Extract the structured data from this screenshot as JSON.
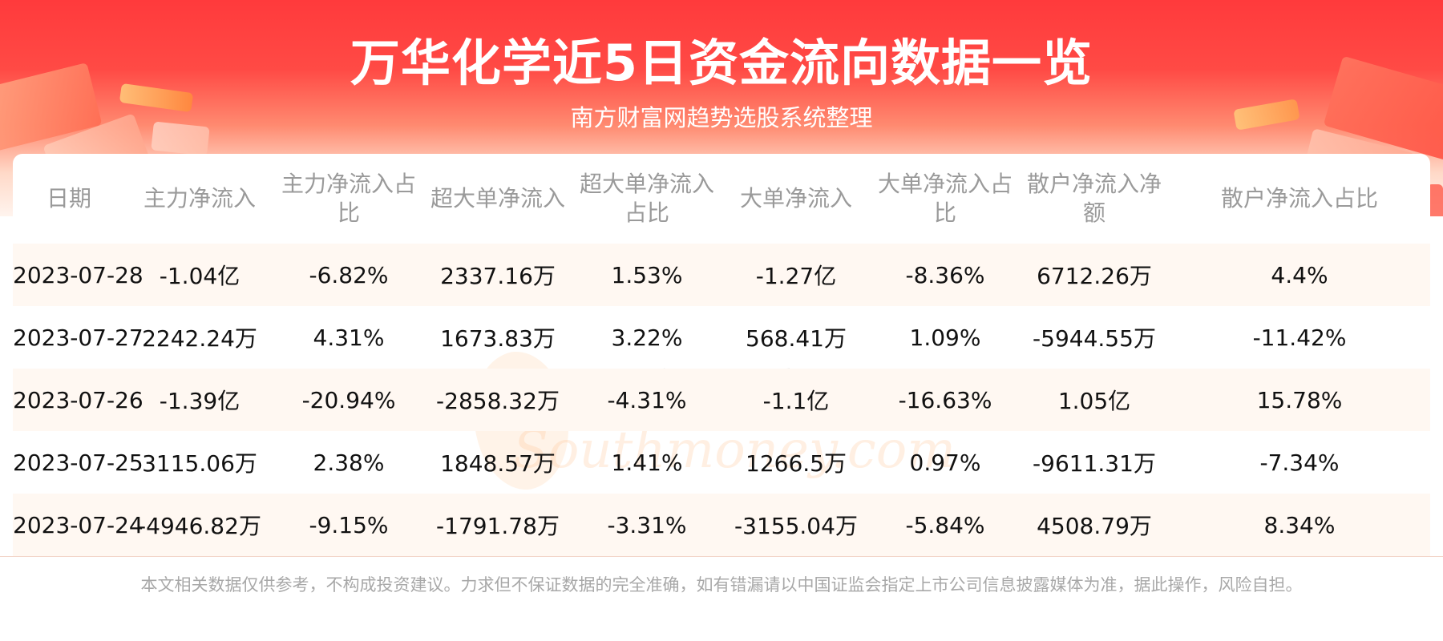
{
  "header": {
    "title": "万华化学近5日资金流向数据一览",
    "subtitle": "南方财富网趋势选股系统整理"
  },
  "watermark": {
    "cn": "南方财富网",
    "en": "Southmoney.com"
  },
  "table": {
    "columns": [
      "日期",
      "主力净流入",
      "主力净流入占比",
      "超大单净流入",
      "超大单净流入占比",
      "大单净流入",
      "大单净流入占比",
      "散户净流入净额",
      "散户净流入占比"
    ],
    "rows": [
      [
        "2023-07-28",
        "-1.04亿",
        "-6.82%",
        "2337.16万",
        "1.53%",
        "-1.27亿",
        "-8.36%",
        "6712.26万",
        "4.4%"
      ],
      [
        "2023-07-27",
        "2242.24万",
        "4.31%",
        "1673.83万",
        "3.22%",
        "568.41万",
        "1.09%",
        "-5944.55万",
        "-11.42%"
      ],
      [
        "2023-07-26",
        "-1.39亿",
        "-20.94%",
        "-2858.32万",
        "-4.31%",
        "-1.1亿",
        "-16.63%",
        "1.05亿",
        "15.78%"
      ],
      [
        "2023-07-25",
        "3115.06万",
        "2.38%",
        "1848.57万",
        "1.41%",
        "1266.5万",
        "0.97%",
        "-9611.31万",
        "-7.34%"
      ],
      [
        "2023-07-24",
        "-4946.82万",
        "-9.15%",
        "-1791.78万",
        "-3.31%",
        "-3155.04万",
        "-5.84%",
        "4508.79万",
        "8.34%"
      ]
    ]
  },
  "footer": {
    "disclaimer": "本文相关数据仅供参考，不构成投资建议。力求但不保证数据的完全准确，如有错漏请以中国证监会指定上市公司信息披露媒体为准，据此操作，风险自担。"
  },
  "colors": {
    "banner_red": "#ff3a3c",
    "row_stripe": "#fff8f2",
    "header_text": "#9a9a9a"
  }
}
